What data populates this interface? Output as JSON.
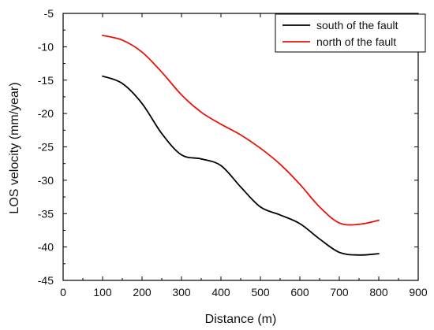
{
  "chart_data": {
    "type": "line",
    "title": "",
    "xlabel": "Distance (m)",
    "ylabel": "LOS velocity (mm/year)",
    "xlim": [
      0,
      900
    ],
    "ylim": [
      -45,
      -5
    ],
    "xticks": [
      0,
      100,
      200,
      300,
      400,
      500,
      600,
      700,
      800,
      900
    ],
    "yticks": [
      -5,
      -10,
      -15,
      -20,
      -25,
      -30,
      -35,
      -40,
      -45
    ],
    "grid": false,
    "legend_position": "top-right",
    "x": [
      100,
      150,
      200,
      250,
      300,
      350,
      400,
      450,
      500,
      550,
      600,
      650,
      700,
      750,
      800
    ],
    "series": [
      {
        "name": "south of the fault",
        "color": "#000000",
        "values": [
          -14.4,
          -15.5,
          -18.5,
          -23.0,
          -26.2,
          -26.8,
          -27.8,
          -31.0,
          -34.0,
          -35.2,
          -36.5,
          -38.8,
          -40.8,
          -41.2,
          -41.0
        ]
      },
      {
        "name": "north of the fault",
        "color": "#e8140a",
        "values": [
          -8.3,
          -9.0,
          -10.8,
          -13.8,
          -17.2,
          -19.8,
          -21.6,
          -23.2,
          -25.2,
          -27.6,
          -30.6,
          -34.0,
          -36.4,
          -36.6,
          -36.0
        ]
      }
    ]
  }
}
